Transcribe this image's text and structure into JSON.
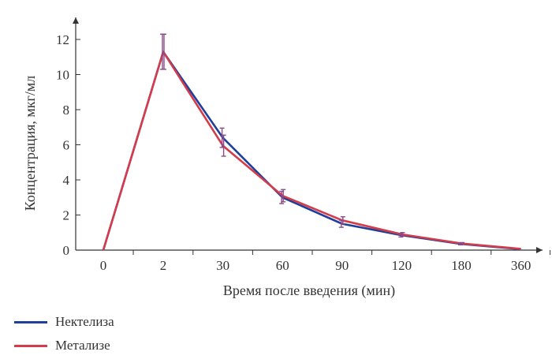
{
  "chart_data": {
    "type": "line",
    "xlabel": "Время после введения (мин)",
    "ylabel": "Концентрация, мкг/мл",
    "categories": [
      "0",
      "2",
      "30",
      "60",
      "90",
      "120",
      "180",
      "360"
    ],
    "ylim": [
      0,
      12
    ],
    "yticks": [
      0,
      2,
      4,
      6,
      8,
      10,
      12
    ],
    "grid": false,
    "legend_position": "bottom-left",
    "series": [
      {
        "name": "Нектелиза",
        "color": "#1f3f9a",
        "values": [
          0,
          11.3,
          6.4,
          3.0,
          1.5,
          0.85,
          0.35,
          0.05
        ],
        "error": [
          0,
          1.0,
          0.55,
          0.35,
          0.2,
          0.1,
          0.05,
          0
        ]
      },
      {
        "name": "Метализе",
        "color": "#d23c4b",
        "values": [
          0,
          11.3,
          5.95,
          3.1,
          1.7,
          0.9,
          0.38,
          0.07
        ],
        "error": [
          0,
          1.0,
          0.6,
          0.35,
          0.2,
          0.1,
          0.05,
          0
        ]
      }
    ],
    "errorbar_color": "#8a4a8a"
  }
}
